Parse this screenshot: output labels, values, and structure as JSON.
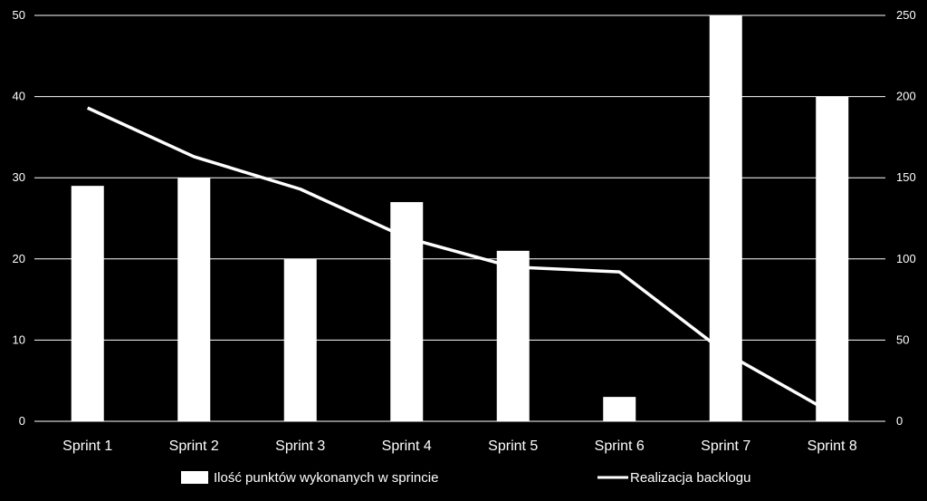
{
  "chart_data": {
    "type": "bar",
    "categories": [
      "Sprint 1",
      "Sprint 2",
      "Sprint 3",
      "Sprint 4",
      "Sprint 5",
      "Sprint 6",
      "Sprint 7",
      "Sprint 8"
    ],
    "series": [
      {
        "name": "Ilość punktów wykonanych w sprincie",
        "type": "bar",
        "axis": "left",
        "values": [
          29,
          30,
          20,
          27,
          21,
          3,
          50,
          40
        ]
      },
      {
        "name": "Realizacja backlogu",
        "type": "line",
        "axis": "right",
        "values": [
          193,
          163,
          143,
          113,
          95,
          92,
          42,
          5
        ]
      }
    ],
    "y_left": {
      "min": 0,
      "max": 50,
      "ticks": [
        "0",
        "10",
        "20",
        "30",
        "40",
        "50"
      ]
    },
    "y_right": {
      "min": 0,
      "max": 250,
      "ticks": [
        "0",
        "50",
        "100",
        "150",
        "200",
        "250"
      ]
    },
    "grid": true,
    "legend_position": "bottom",
    "colors": {
      "background": "#000000",
      "bars": "#ffffff",
      "line": "#ffffff",
      "grid": "#ffffff",
      "text": "#ffffff"
    }
  }
}
